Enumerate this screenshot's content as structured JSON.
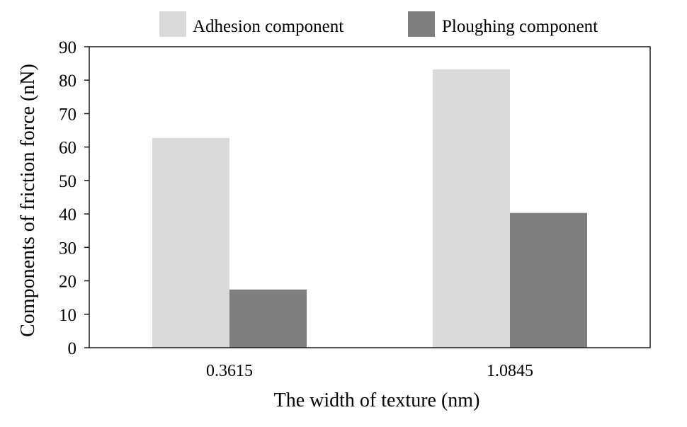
{
  "chart_data": {
    "type": "bar",
    "title": "",
    "xlabel": "The width of texture (nm)",
    "ylabel": "Components of friction force (nN)",
    "categories": [
      "0.3615",
      "1.0845"
    ],
    "series": [
      {
        "name": "Adhesion component",
        "color": "#dadada",
        "values": [
          62.7,
          83.2
        ]
      },
      {
        "name": "Ploughing component",
        "color": "#7f7f7f",
        "values": [
          17.4,
          40.3
        ]
      }
    ],
    "ylim": [
      0,
      90
    ],
    "yticks": [
      "0",
      "10",
      "20",
      "30",
      "40",
      "50",
      "60",
      "70",
      "80",
      "90"
    ],
    "grid": false,
    "legend": "top"
  }
}
